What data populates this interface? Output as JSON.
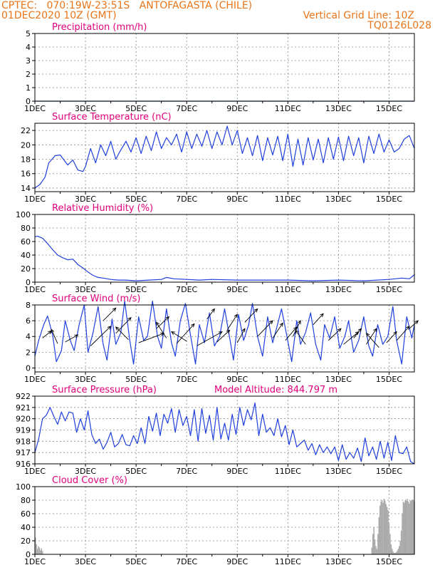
{
  "header": {
    "line1": "CPTEC:   070:19W-23:51S   ANTOFAGASTA (CHILE)",
    "line2": "01DEC2020 10Z (GMT)",
    "grid_note": "Vertical Grid Line: 10Z",
    "code": "TQ0126L028"
  },
  "colors": {
    "header": "#e8751a",
    "title": "#e0007a",
    "line": "#1f3fdc",
    "bar": "#a9a9a9",
    "arrow": "#000000"
  },
  "chart_data": [
    {
      "type": "line",
      "title": "Precipitation (mm/h)",
      "ylim": [
        0,
        5
      ],
      "yticks": [
        0,
        1,
        2,
        3,
        4,
        5
      ],
      "xlim": [
        0,
        15
      ],
      "xticks": [
        0,
        2,
        4,
        6,
        8,
        10,
        12,
        14
      ],
      "xlabels": [
        "1DEC",
        "3DEC",
        "5DEC",
        "7DEC",
        "9DEC",
        "11DEC",
        "13DEC",
        "15DEC"
      ],
      "series": [
        {
          "x": [
            0,
            15
          ],
          "y": [
            0,
            0
          ]
        }
      ]
    },
    {
      "type": "line",
      "title": "Surface Temperature (nC)",
      "ylim": [
        13.5,
        23
      ],
      "yticks": [
        14,
        16,
        18,
        20,
        22
      ],
      "xlim": [
        0,
        15
      ],
      "xticks": [
        0,
        2,
        4,
        6,
        8,
        10,
        12,
        14
      ],
      "xlabels": [
        "1DEC",
        "3DEC",
        "5DEC",
        "7DEC",
        "9DEC",
        "11DEC",
        "13DEC",
        "15DEC"
      ],
      "series": [
        {
          "x": [
            0,
            0.2,
            0.4,
            0.55,
            0.8,
            1.0,
            1.3,
            1.5,
            1.7,
            1.9,
            2.0,
            2.2,
            2.4,
            2.6,
            2.8,
            3.0,
            3.2,
            3.35,
            3.6,
            3.8,
            4.0,
            4.2,
            4.4,
            4.6,
            4.8,
            5.0,
            5.2,
            5.4,
            5.6,
            5.8,
            6.0,
            6.2,
            6.4,
            6.6,
            6.8,
            7.0,
            7.2,
            7.4,
            7.6,
            7.8,
            8.0,
            8.2,
            8.4,
            8.6,
            8.8,
            9.0,
            9.2,
            9.4,
            9.6,
            9.8,
            10.0,
            10.2,
            10.4,
            10.6,
            10.8,
            11.0,
            11.2,
            11.4,
            11.6,
            11.8,
            12.0,
            12.2,
            12.4,
            12.6,
            12.8,
            13.0,
            13.2,
            13.4,
            13.6,
            13.8,
            14.0,
            14.2,
            14.4,
            14.6,
            14.8,
            15.0
          ],
          "y": [
            14.0,
            14.5,
            15.5,
            17.5,
            18.5,
            18.6,
            17.2,
            17.9,
            16.5,
            16.3,
            17.0,
            19.5,
            17.5,
            20.0,
            18.5,
            20.5,
            18.0,
            19.0,
            20.5,
            19.0,
            21.0,
            18.8,
            21.2,
            19.2,
            21.8,
            19.5,
            21.0,
            20.0,
            21.5,
            19.0,
            21.8,
            19.5,
            21.5,
            19.8,
            22.0,
            19.5,
            21.8,
            20.0,
            22.6,
            20.0,
            22.0,
            18.8,
            21.0,
            18.5,
            21.3,
            17.8,
            21.0,
            18.6,
            21.2,
            17.8,
            21.5,
            17.0,
            20.8,
            17.2,
            21.0,
            17.9,
            20.8,
            17.5,
            21.0,
            18.0,
            21.1,
            17.8,
            21.2,
            18.5,
            21.0,
            17.5,
            21.2,
            18.8,
            21.5,
            19.0,
            20.7,
            19.0,
            19.5,
            20.8,
            21.3,
            19.5
          ]
        }
      ]
    },
    {
      "type": "line",
      "title": "Relative Humidity (%)",
      "ylim": [
        0,
        100
      ],
      "yticks": [
        0,
        20,
        40,
        60,
        80,
        100
      ],
      "xlim": [
        0,
        15
      ],
      "xticks": [
        0,
        2,
        4,
        6,
        8,
        10,
        12,
        14
      ],
      "xlabels": [
        "1DEC",
        "3DEC",
        "5DEC",
        "7DEC",
        "9DEC",
        "11DEC",
        "13DEC",
        "15DEC"
      ],
      "series": [
        {
          "x": [
            0,
            0.1,
            0.3,
            0.5,
            0.7,
            0.9,
            1.1,
            1.3,
            1.5,
            1.7,
            1.9,
            2.1,
            2.3,
            2.5,
            2.7,
            3.0,
            3.3,
            3.6,
            4.0,
            4.5,
            5.0,
            5.2,
            5.5,
            6.0,
            6.5,
            7.0,
            8.0,
            9.0,
            10.0,
            11.0,
            12.0,
            13.0,
            14.0,
            14.5,
            14.8,
            15.0
          ],
          "y": [
            67,
            68,
            65,
            57,
            48,
            40,
            36,
            33,
            34,
            26,
            21,
            15,
            10,
            7,
            6,
            4,
            3,
            3,
            2,
            3,
            4,
            7,
            5,
            4,
            3,
            4,
            3,
            3,
            3,
            2,
            3,
            2,
            4,
            6,
            5,
            11
          ]
        }
      ]
    },
    {
      "type": "line",
      "title": "Surface Wind (m/s)",
      "ylim": [
        -0.5,
        8
      ],
      "yticks": [
        0,
        2,
        4,
        6,
        8
      ],
      "xlim": [
        0,
        15
      ],
      "xticks": [
        0,
        2,
        4,
        6,
        8,
        10,
        12,
        14
      ],
      "xlabels": [
        "1DEC",
        "3DEC",
        "5DEC",
        "7DEC",
        "9DEC",
        "11DEC",
        "13DEC",
        "15DEC"
      ],
      "series": [
        {
          "x": [
            0,
            0.15,
            0.35,
            0.5,
            0.7,
            0.85,
            1.05,
            1.2,
            1.4,
            1.55,
            1.75,
            1.95,
            2.1,
            2.3,
            2.5,
            2.7,
            2.85,
            3.05,
            3.2,
            3.4,
            3.55,
            3.75,
            3.9,
            4.1,
            4.3,
            4.45,
            4.65,
            4.85,
            5.0,
            5.2,
            5.4,
            5.55,
            5.75,
            5.95,
            6.15,
            6.35,
            6.5,
            6.7,
            6.9,
            7.1,
            7.3,
            7.5,
            7.7,
            7.85,
            8.05,
            8.25,
            8.45,
            8.6,
            8.8,
            9.0,
            9.2,
            9.4,
            9.55,
            9.75,
            9.95,
            10.15,
            10.35,
            10.5,
            10.7,
            10.9,
            11.1,
            11.3,
            11.45,
            11.65,
            11.85,
            12.05,
            12.25,
            12.4,
            12.6,
            12.8,
            13.0,
            13.2,
            13.35,
            13.55,
            13.75,
            13.95,
            14.15,
            14.3,
            14.5,
            14.7,
            14.9,
            15.0
          ],
          "y": [
            1.5,
            3.5,
            5.5,
            6.6,
            4.2,
            0.8,
            2.2,
            6.0,
            3.5,
            2.2,
            5.5,
            8.0,
            2.0,
            4.5,
            7.8,
            3.0,
            1.0,
            6.2,
            3.0,
            4.5,
            8.5,
            3.5,
            0.5,
            6.5,
            3.5,
            4.0,
            8.5,
            4.0,
            2.5,
            7.5,
            3.2,
            1.5,
            6.0,
            8.2,
            4.2,
            0.5,
            5.5,
            3.2,
            7.0,
            2.8,
            4.0,
            7.5,
            3.8,
            1.0,
            6.8,
            3.5,
            5.5,
            8.2,
            4.0,
            1.5,
            6.5,
            3.2,
            5.0,
            7.5,
            4.2,
            0.8,
            6.0,
            3.0,
            4.5,
            7.0,
            3.0,
            1.0,
            5.5,
            3.8,
            6.5,
            2.5,
            4.0,
            6.0,
            2.0,
            3.5,
            6.5,
            2.8,
            1.5,
            5.5,
            3.0,
            4.0,
            7.8,
            3.5,
            0.5,
            6.5,
            3.8,
            5.5
          ]
        }
      ],
      "arrows": [
        {
          "x": 0.3,
          "y": 3.8,
          "dx": 0.35,
          "dy": 0.9
        },
        {
          "x": 0.9,
          "y": 3.1,
          "dx": -0.25,
          "dy": 1.8
        },
        {
          "x": 1.2,
          "y": 3.3,
          "dx": 0.5,
          "dy": 0.9
        },
        {
          "x": 2.2,
          "y": 2.8,
          "dx": 0.8,
          "dy": 2.5
        },
        {
          "x": 2.7,
          "y": 6.0,
          "dx": 0.5,
          "dy": 1.6
        },
        {
          "x": 3.2,
          "y": 4.4,
          "dx": 0.6,
          "dy": 2.0
        },
        {
          "x": 3.7,
          "y": 3.6,
          "dx": -0.5,
          "dy": 1.6
        },
        {
          "x": 4.1,
          "y": 3.2,
          "dx": 1.0,
          "dy": 1.2
        },
        {
          "x": 4.8,
          "y": 5.0,
          "dx": 0.5,
          "dy": 1.5
        },
        {
          "x": 5.2,
          "y": 3.8,
          "dx": -0.4,
          "dy": 2.0
        },
        {
          "x": 5.6,
          "y": 3.1,
          "dx": 0.7,
          "dy": 2.5
        },
        {
          "x": 6.0,
          "y": 3.4,
          "dx": -0.6,
          "dy": 1.2
        },
        {
          "x": 6.4,
          "y": 2.8,
          "dx": 1.0,
          "dy": 1.8
        },
        {
          "x": 6.8,
          "y": 6.2,
          "dx": 0.3,
          "dy": 1.3
        },
        {
          "x": 7.2,
          "y": 3.3,
          "dx": 0.5,
          "dy": 1.5
        },
        {
          "x": 7.6,
          "y": 4.8,
          "dx": 0.4,
          "dy": 2.0
        },
        {
          "x": 8.0,
          "y": 3.2,
          "dx": 0.3,
          "dy": 1.8
        },
        {
          "x": 8.3,
          "y": 5.8,
          "dx": 0.5,
          "dy": 1.7
        },
        {
          "x": 8.8,
          "y": 4.0,
          "dx": 0.6,
          "dy": 2.0
        },
        {
          "x": 9.4,
          "y": 3.8,
          "dx": 0.4,
          "dy": 1.9
        },
        {
          "x": 9.9,
          "y": 3.5,
          "dx": 0.45,
          "dy": 1.7
        },
        {
          "x": 10.2,
          "y": 4.0,
          "dx": 0.3,
          "dy": 2.0
        },
        {
          "x": 10.7,
          "y": 3.0,
          "dx": -0.4,
          "dy": 1.8
        },
        {
          "x": 11.0,
          "y": 5.5,
          "dx": 0.4,
          "dy": 1.4
        },
        {
          "x": 11.6,
          "y": 3.5,
          "dx": 0.5,
          "dy": 1.5
        },
        {
          "x": 12.2,
          "y": 3.0,
          "dx": 0.6,
          "dy": 1.6
        },
        {
          "x": 12.6,
          "y": 3.8,
          "dx": 0.3,
          "dy": 1.2
        },
        {
          "x": 13.1,
          "y": 3.0,
          "dx": 0.4,
          "dy": 2.0
        },
        {
          "x": 13.6,
          "y": 2.6,
          "dx": -0.5,
          "dy": 1.8
        },
        {
          "x": 13.9,
          "y": 3.2,
          "dx": 0.4,
          "dy": 1.4
        },
        {
          "x": 14.3,
          "y": 3.5,
          "dx": 0.5,
          "dy": 1.8
        },
        {
          "x": 14.8,
          "y": 5.0,
          "dx": 0.35,
          "dy": 1.0
        }
      ]
    },
    {
      "type": "line",
      "title": "Surface Pressure (hPa)",
      "subtitle": "Model Altitude: 844.797 m",
      "ylim": [
        916,
        922
      ],
      "yticks": [
        916,
        917,
        918,
        919,
        920,
        921,
        922
      ],
      "xlim": [
        0,
        15
      ],
      "xticks": [
        0,
        2,
        4,
        6,
        8,
        10,
        12,
        14
      ],
      "xlabels": [
        "1DEC",
        "3DEC",
        "5DEC",
        "7DEC",
        "9DEC",
        "11DEC",
        "13DEC",
        "15DEC"
      ],
      "series": [
        {
          "x": [
            0,
            0.15,
            0.3,
            0.45,
            0.6,
            0.75,
            0.9,
            1.05,
            1.2,
            1.35,
            1.5,
            1.65,
            1.8,
            1.95,
            2.1,
            2.25,
            2.4,
            2.55,
            2.7,
            2.85,
            3.0,
            3.15,
            3.3,
            3.45,
            3.6,
            3.75,
            3.9,
            4.05,
            4.2,
            4.35,
            4.5,
            4.65,
            4.8,
            4.95,
            5.1,
            5.25,
            5.4,
            5.55,
            5.7,
            5.85,
            6.0,
            6.15,
            6.3,
            6.45,
            6.6,
            6.75,
            6.9,
            7.05,
            7.2,
            7.35,
            7.5,
            7.65,
            7.8,
            7.95,
            8.1,
            8.25,
            8.4,
            8.55,
            8.7,
            8.85,
            9.0,
            9.15,
            9.3,
            9.45,
            9.6,
            9.75,
            9.9,
            10.05,
            10.2,
            10.35,
            10.5,
            10.65,
            10.8,
            10.95,
            11.1,
            11.25,
            11.4,
            11.55,
            11.7,
            11.85,
            12.0,
            12.15,
            12.3,
            12.45,
            12.6,
            12.75,
            12.9,
            13.05,
            13.2,
            13.35,
            13.5,
            13.65,
            13.8,
            13.95,
            14.1,
            14.25,
            14.4,
            14.55,
            14.7,
            14.85,
            15.0
          ],
          "y": [
            917.0,
            918.2,
            920.0,
            920.3,
            921.0,
            920.2,
            919.5,
            920.6,
            919.8,
            920.6,
            920.5,
            918.8,
            920.0,
            919.0,
            920.7,
            918.6,
            917.8,
            918.2,
            917.3,
            917.9,
            918.8,
            917.5,
            917.8,
            918.6,
            917.7,
            917.6,
            918.5,
            917.8,
            919.2,
            917.8,
            920.2,
            918.9,
            920.5,
            918.5,
            920.4,
            919.6,
            920.9,
            918.8,
            920.8,
            919.4,
            920.2,
            918.5,
            920.8,
            918.0,
            920.9,
            918.7,
            920.3,
            918.1,
            921.0,
            918.2,
            919.6,
            918.1,
            920.4,
            918.6,
            921.0,
            919.4,
            920.8,
            919.9,
            921.4,
            918.5,
            920.4,
            918.8,
            919.2,
            918.5,
            920.0,
            918.4,
            919.4,
            917.7,
            919.0,
            917.5,
            917.8,
            918.1,
            917.2,
            917.8,
            916.8,
            917.7,
            917.0,
            917.5,
            916.9,
            917.5,
            916.3,
            917.7,
            916.4,
            917.0,
            916.5,
            917.4,
            916.2,
            918.3,
            916.7,
            917.5,
            916.4,
            918.0,
            916.5,
            917.9,
            916.3,
            918.5,
            917.0,
            916.9,
            917.5,
            916.2,
            916.0
          ]
        }
      ]
    },
    {
      "type": "bar",
      "title": "Cloud Cover (%)",
      "ylim": [
        0,
        100
      ],
      "yticks": [
        0,
        20,
        40,
        60,
        80,
        100
      ],
      "xlim": [
        0,
        15
      ],
      "xticks": [
        0,
        2,
        4,
        6,
        8,
        10,
        12,
        14
      ],
      "xlabels": [
        "1DEC",
        "3DEC",
        "5DEC",
        "7DEC",
        "9DEC",
        "11DEC",
        "13DEC",
        "15DEC"
      ],
      "bar_width": 0.042,
      "series": [
        {
          "x": [
            0.0,
            0.04,
            0.08,
            0.12,
            0.16,
            0.2,
            0.24,
            0.28,
            13.3,
            13.34,
            13.38,
            13.42,
            13.46,
            13.5,
            13.54,
            13.58,
            13.62,
            13.66,
            13.7,
            13.74,
            13.78,
            13.82,
            13.86,
            13.9,
            13.94,
            13.98,
            14.02,
            14.06,
            14.1,
            14.14,
            14.18,
            14.22,
            14.26,
            14.3,
            14.34,
            14.38,
            14.42,
            14.46,
            14.5,
            14.54,
            14.58,
            14.62,
            14.66,
            14.7,
            14.74,
            14.78,
            14.82,
            14.86,
            14.9,
            14.94,
            14.98
          ],
          "y": [
            25,
            15,
            8,
            12,
            10,
            6,
            9,
            5,
            10,
            30,
            40,
            22,
            12,
            8,
            30,
            55,
            72,
            78,
            80,
            76,
            82,
            79,
            74,
            70,
            65,
            45,
            30,
            15,
            8,
            4,
            2,
            2,
            3,
            5,
            8,
            12,
            20,
            35,
            60,
            78,
            76,
            80,
            79,
            82,
            78,
            75,
            79,
            80,
            81,
            80,
            78
          ]
        }
      ]
    }
  ]
}
